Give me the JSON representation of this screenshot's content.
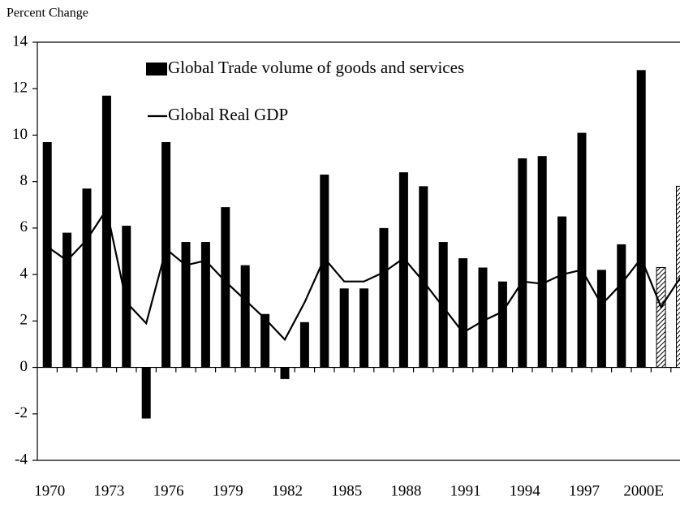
{
  "chart_data": {
    "type": "bar_line",
    "y_axis_label": "Percent Change",
    "categories": [
      "1970",
      null,
      null,
      "1973",
      null,
      null,
      "1976",
      null,
      null,
      "1979",
      null,
      null,
      "1982",
      null,
      null,
      "1985",
      null,
      null,
      "1988",
      null,
      null,
      "1991",
      null,
      null,
      "1994",
      null,
      null,
      "1997",
      null,
      null,
      "2000E",
      null,
      null
    ],
    "series": [
      {
        "name": "Global Trade volume of goods and services",
        "type": "bar",
        "color": "#000000",
        "values": [
          9.7,
          5.8,
          7.7,
          11.7,
          6.1,
          -2.2,
          9.7,
          5.4,
          5.4,
          6.9,
          4.4,
          2.3,
          -0.5,
          1.95,
          8.3,
          3.4,
          3.4,
          6.0,
          8.4,
          7.8,
          5.4,
          4.7,
          4.3,
          3.7,
          9.0,
          9.1,
          6.5,
          10.1,
          4.2,
          5.3,
          12.8,
          4.3,
          7.8
        ],
        "hatched": [
          false,
          false,
          false,
          false,
          false,
          false,
          false,
          false,
          false,
          false,
          false,
          false,
          false,
          false,
          false,
          false,
          false,
          false,
          false,
          false,
          false,
          false,
          false,
          false,
          false,
          false,
          false,
          false,
          false,
          false,
          false,
          true,
          true
        ]
      },
      {
        "name": "Global Real GDP",
        "type": "line",
        "color": "#000000",
        "values": [
          5.2,
          4.6,
          5.5,
          6.8,
          2.8,
          1.9,
          5.1,
          4.4,
          4.6,
          3.7,
          2.9,
          2.1,
          1.2,
          2.8,
          4.7,
          3.7,
          3.7,
          4.1,
          4.7,
          3.7,
          2.6,
          1.5,
          2.0,
          2.4,
          3.7,
          3.6,
          4.0,
          4.2,
          2.7,
          3.6,
          4.7,
          2.6,
          3.9
        ]
      }
    ],
    "ylim": [
      -4,
      14
    ],
    "yticks": [
      -4,
      -2,
      0,
      2,
      4,
      6,
      8,
      10,
      12,
      14
    ],
    "legend": "upper left",
    "grid": false
  }
}
